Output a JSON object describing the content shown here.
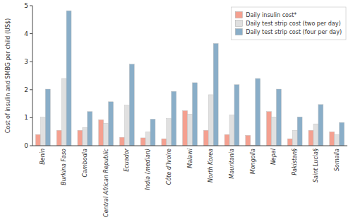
{
  "chart_data": {
    "type": "bar",
    "categories": [
      "Benin",
      "Burkina Faso",
      "Cambodia",
      "Central African Republic",
      "Ecuador",
      "India (median)",
      "Côte d’Ivoire",
      "Malawi",
      "North Korea",
      "Mauritania",
      "Mongolia",
      "Nepal",
      "Pakistan§",
      "Saint Lucia§",
      "Somalia"
    ],
    "series": [
      {
        "name": "Daily insulin cost*",
        "color": "#f4a090",
        "values": [
          0.4,
          0.55,
          0.55,
          0.93,
          0.3,
          0.28,
          0.25,
          1.25,
          0.55,
          0.4,
          0.37,
          1.22,
          0.25,
          0.55,
          0.5
        ]
      },
      {
        "name": "Daily test strip cost (two per day)",
        "color": "#e0e0e0",
        "values": [
          1.02,
          2.4,
          0.65,
          0.8,
          1.45,
          0.5,
          0.97,
          1.13,
          1.82,
          1.1,
          0.02,
          1.03,
          0.55,
          0.78,
          0.4
        ]
      },
      {
        "name": "Daily test strip cost (four per day)",
        "color": "#8aaec8",
        "values": [
          2.02,
          4.82,
          1.22,
          1.57,
          2.91,
          0.95,
          1.94,
          2.25,
          3.65,
          2.18,
          2.4,
          2.02,
          1.03,
          1.47,
          0.83
        ]
      }
    ],
    "ylabel": "Cost of insulin and SMBG per child (US$)",
    "ylim": [
      0,
      5
    ],
    "yticks": [
      0,
      1,
      2,
      3,
      4,
      5
    ],
    "grid": false,
    "legend": "upper right"
  }
}
